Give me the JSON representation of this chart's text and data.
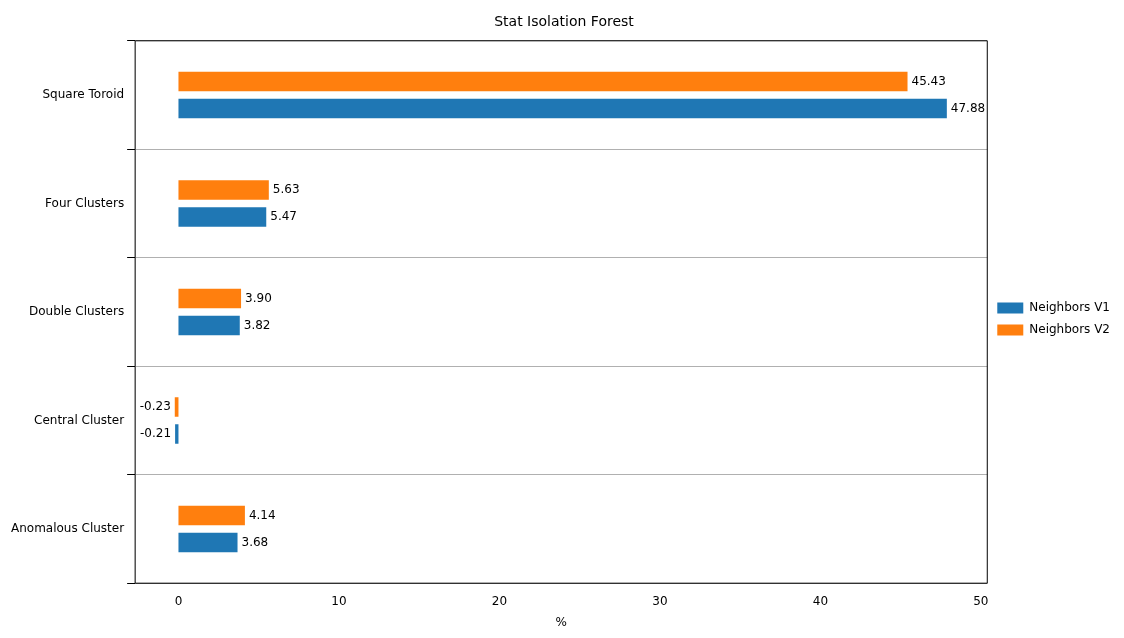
{
  "chart_data": {
    "type": "bar",
    "orientation": "horizontal",
    "title": "Stat Isolation Forest",
    "xlabel": "%",
    "categories": [
      "Square Toroid",
      "Four Clusters",
      "Double Clusters",
      "Central Cluster",
      "Anomalous Cluster"
    ],
    "series": [
      {
        "name": "Neighbors V1",
        "color": "#1f77b4",
        "values": [
          47.88,
          5.47,
          3.82,
          -0.21,
          3.68
        ],
        "value_labels": [
          "47.88",
          "5.47",
          "3.82",
          "-0.21",
          "3.68"
        ]
      },
      {
        "name": "Neighbors V2",
        "color": "#ff7f0e",
        "values": [
          45.43,
          5.63,
          3.9,
          -0.23,
          4.14
        ],
        "value_labels": [
          "45.43",
          "5.63",
          "3.90",
          "-0.23",
          "4.14"
        ]
      }
    ],
    "xlim": [
      -2.7,
      50.4
    ],
    "xticks": [
      0,
      10,
      20,
      30,
      40,
      50
    ],
    "grid": "y",
    "legend": "right"
  }
}
